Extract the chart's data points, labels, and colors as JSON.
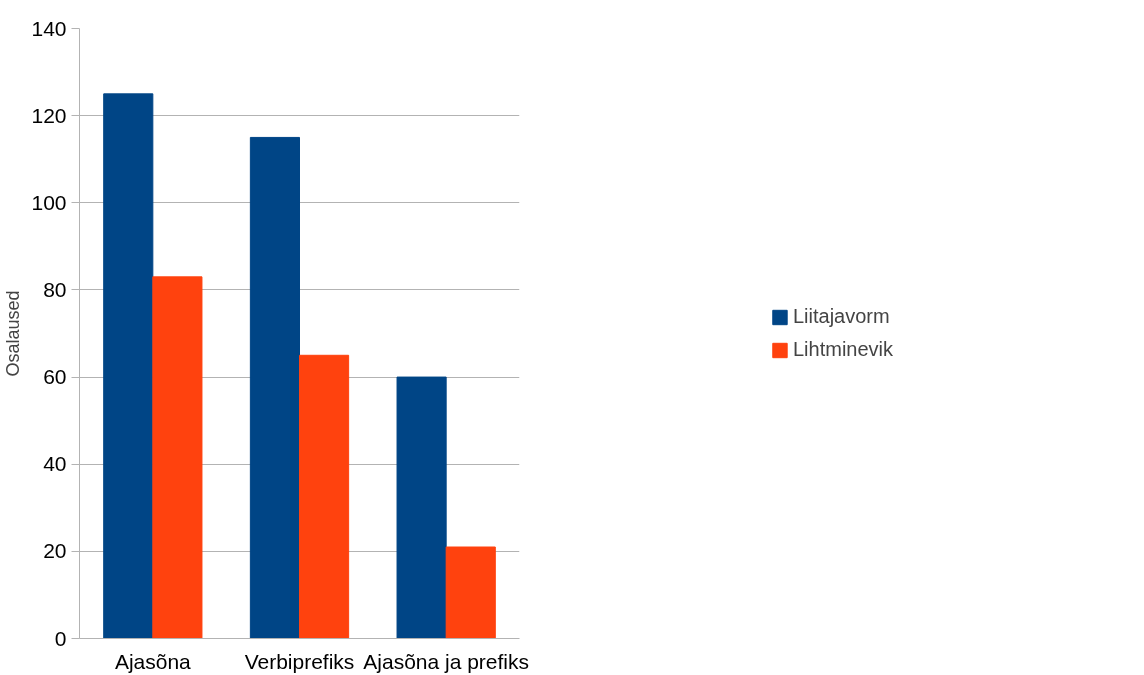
{
  "chart_data": {
    "type": "bar",
    "ylabel": "Osalaused",
    "categories": [
      "Ajasõna",
      "Verbiprefiks",
      "Ajasõna ja prefiks"
    ],
    "series": [
      {
        "name": "Liitajavorm",
        "color": "#004586",
        "values": [
          125,
          115,
          60
        ]
      },
      {
        "name": "Lihtminevik",
        "color": "#ff420e",
        "values": [
          83,
          65,
          21
        ]
      }
    ],
    "ylim": [
      0,
      140
    ],
    "yticks": [
      0,
      20,
      40,
      60,
      80,
      100,
      120,
      140
    ],
    "grid": "y",
    "legend": "right"
  }
}
